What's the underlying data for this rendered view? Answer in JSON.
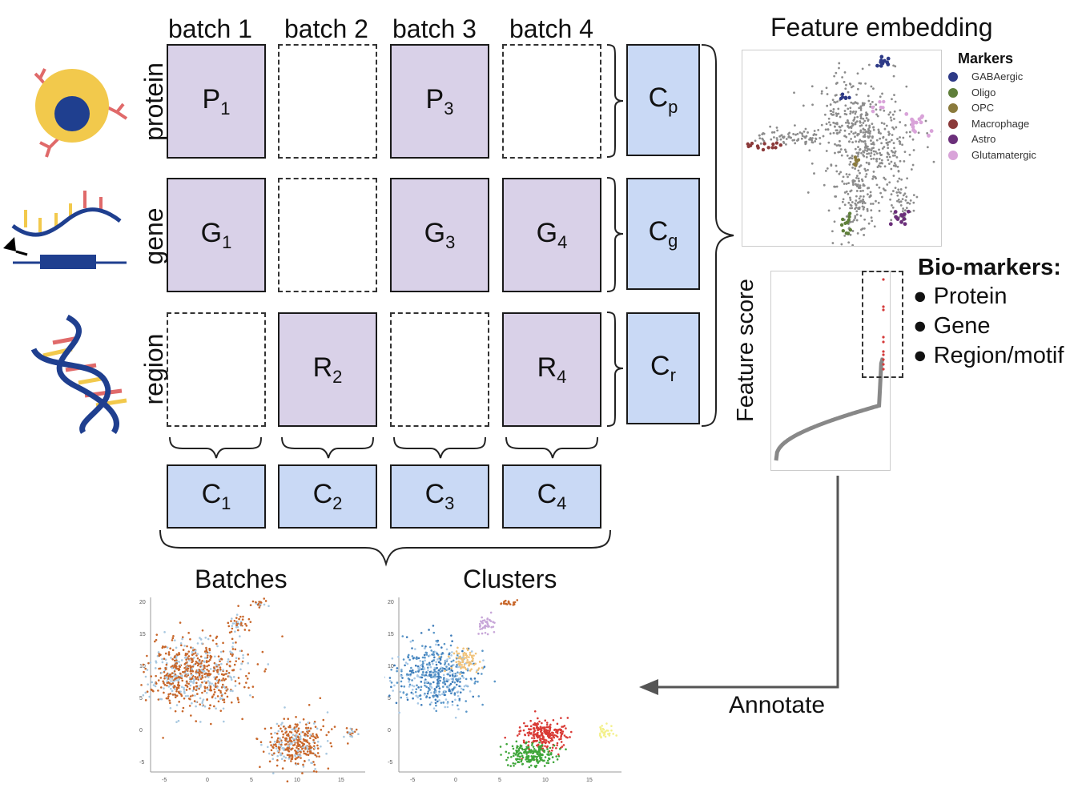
{
  "columns": [
    "batch 1",
    "batch 2",
    "batch 3",
    "batch 4"
  ],
  "rows": [
    "protein",
    "gene",
    "region"
  ],
  "matrix": {
    "P1": {
      "main": "P",
      "sub": "1"
    },
    "P3": {
      "main": "P",
      "sub": "3"
    },
    "G1": {
      "main": "G",
      "sub": "1"
    },
    "G3": {
      "main": "G",
      "sub": "3"
    },
    "G4": {
      "main": "G",
      "sub": "4"
    },
    "R2": {
      "main": "R",
      "sub": "2"
    },
    "R4": {
      "main": "R",
      "sub": "4"
    }
  },
  "row_codes": {
    "cp": {
      "main": "C",
      "sub": "p"
    },
    "cg": {
      "main": "C",
      "sub": "g"
    },
    "cr": {
      "main": "C",
      "sub": "r"
    }
  },
  "col_codes": {
    "c1": {
      "main": "C",
      "sub": "1"
    },
    "c2": {
      "main": "C",
      "sub": "2"
    },
    "c3": {
      "main": "C",
      "sub": "3"
    },
    "c4": {
      "main": "C",
      "sub": "4"
    }
  },
  "feature_embedding": {
    "title": "Feature embedding",
    "legend_title": "Markers",
    "markers": [
      {
        "name": "GABAergic",
        "color": "#2e3a87"
      },
      {
        "name": "Oligo",
        "color": "#5f7f3a"
      },
      {
        "name": "OPC",
        "color": "#8a7a3c"
      },
      {
        "name": "Macrophage",
        "color": "#8b3a3a"
      },
      {
        "name": "Astro",
        "color": "#6b2f7a"
      },
      {
        "name": "Glutamatergic",
        "color": "#d9a3d9"
      }
    ]
  },
  "feature_score": {
    "ylabel": "Feature score"
  },
  "biomarkers": {
    "title": "Bio-markers:",
    "items": [
      "Protein",
      "Gene",
      "Region/motif"
    ]
  },
  "annotate_label": "Annotate",
  "batches_title": "Batches",
  "clusters_title": "Clusters",
  "umap_axes": {
    "x_ticks": [
      "-5",
      "0",
      "5",
      "10",
      "15"
    ],
    "y_ticks": [
      "20",
      "15",
      "10",
      "5",
      "0",
      "-5"
    ]
  },
  "colors": {
    "filled_block": "#d9d1e8",
    "code_block": "#c9d9f5",
    "batch_orange": "#c8672b",
    "batch_light": "#a8c8e0"
  }
}
